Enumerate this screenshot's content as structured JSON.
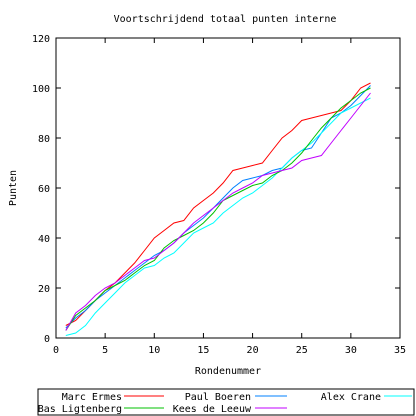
{
  "chart_data": {
    "type": "line",
    "title": "Voortschrijdend totaal punten interne",
    "xlabel": "Rondenummer",
    "ylabel": "Punten",
    "xlim": [
      0,
      35
    ],
    "ylim": [
      0,
      120
    ],
    "x_ticks": [
      0,
      5,
      10,
      15,
      20,
      25,
      30,
      35
    ],
    "y_ticks": [
      0,
      20,
      40,
      60,
      80,
      100,
      120
    ],
    "grid": false,
    "legend_position": "bottom",
    "x": [
      1,
      2,
      3,
      4,
      5,
      6,
      7,
      8,
      9,
      10,
      11,
      12,
      13,
      14,
      15,
      16,
      17,
      18,
      19,
      20,
      21,
      22,
      23,
      24,
      25,
      26,
      27,
      28,
      29,
      30,
      31,
      32
    ],
    "series": [
      {
        "name": "Marc Ermes",
        "color": "#ff0000",
        "values": [
          5,
          7,
          11,
          15,
          19,
          22,
          26,
          30,
          35,
          40,
          43,
          46,
          47,
          52,
          55,
          58,
          62,
          67,
          68,
          69,
          70,
          75,
          80,
          83,
          87,
          88,
          89,
          90,
          91,
          95,
          100,
          102
        ]
      },
      {
        "name": "Paul Boeren",
        "color": "#0080ff",
        "values": [
          4,
          8,
          11,
          15,
          18,
          21,
          24,
          27,
          30,
          33,
          35,
          38,
          42,
          45,
          48,
          52,
          56,
          60,
          63,
          64,
          65,
          67,
          68,
          72,
          75,
          76,
          82,
          88,
          90,
          93,
          97,
          101
        ]
      },
      {
        "name": "Alex Crane",
        "color": "#00ffff",
        "values": [
          1,
          2,
          5,
          10,
          14,
          18,
          22,
          25,
          28,
          29,
          32,
          34,
          38,
          42,
          44,
          46,
          50,
          53,
          56,
          58,
          61,
          64,
          68,
          72,
          75,
          78,
          82,
          86,
          90,
          92,
          94,
          96
        ]
      },
      {
        "name": "Bas Ligtenberg",
        "color": "#00c000",
        "values": [
          3,
          9,
          12,
          15,
          19,
          21,
          23,
          26,
          29,
          31,
          36,
          39,
          41,
          43,
          46,
          50,
          55,
          57,
          59,
          61,
          62,
          65,
          67,
          70,
          74,
          79,
          84,
          88,
          92,
          95,
          98,
          100
        ]
      },
      {
        "name": "Kees de Leeuw",
        "color": "#c000ff",
        "values": [
          3,
          10,
          13,
          17,
          20,
          22,
          25,
          28,
          31,
          32,
          35,
          38,
          42,
          46,
          49,
          52,
          55,
          58,
          60,
          62,
          65,
          66,
          67,
          68,
          71,
          72,
          73,
          78,
          83,
          88,
          93,
          98
        ]
      }
    ]
  }
}
